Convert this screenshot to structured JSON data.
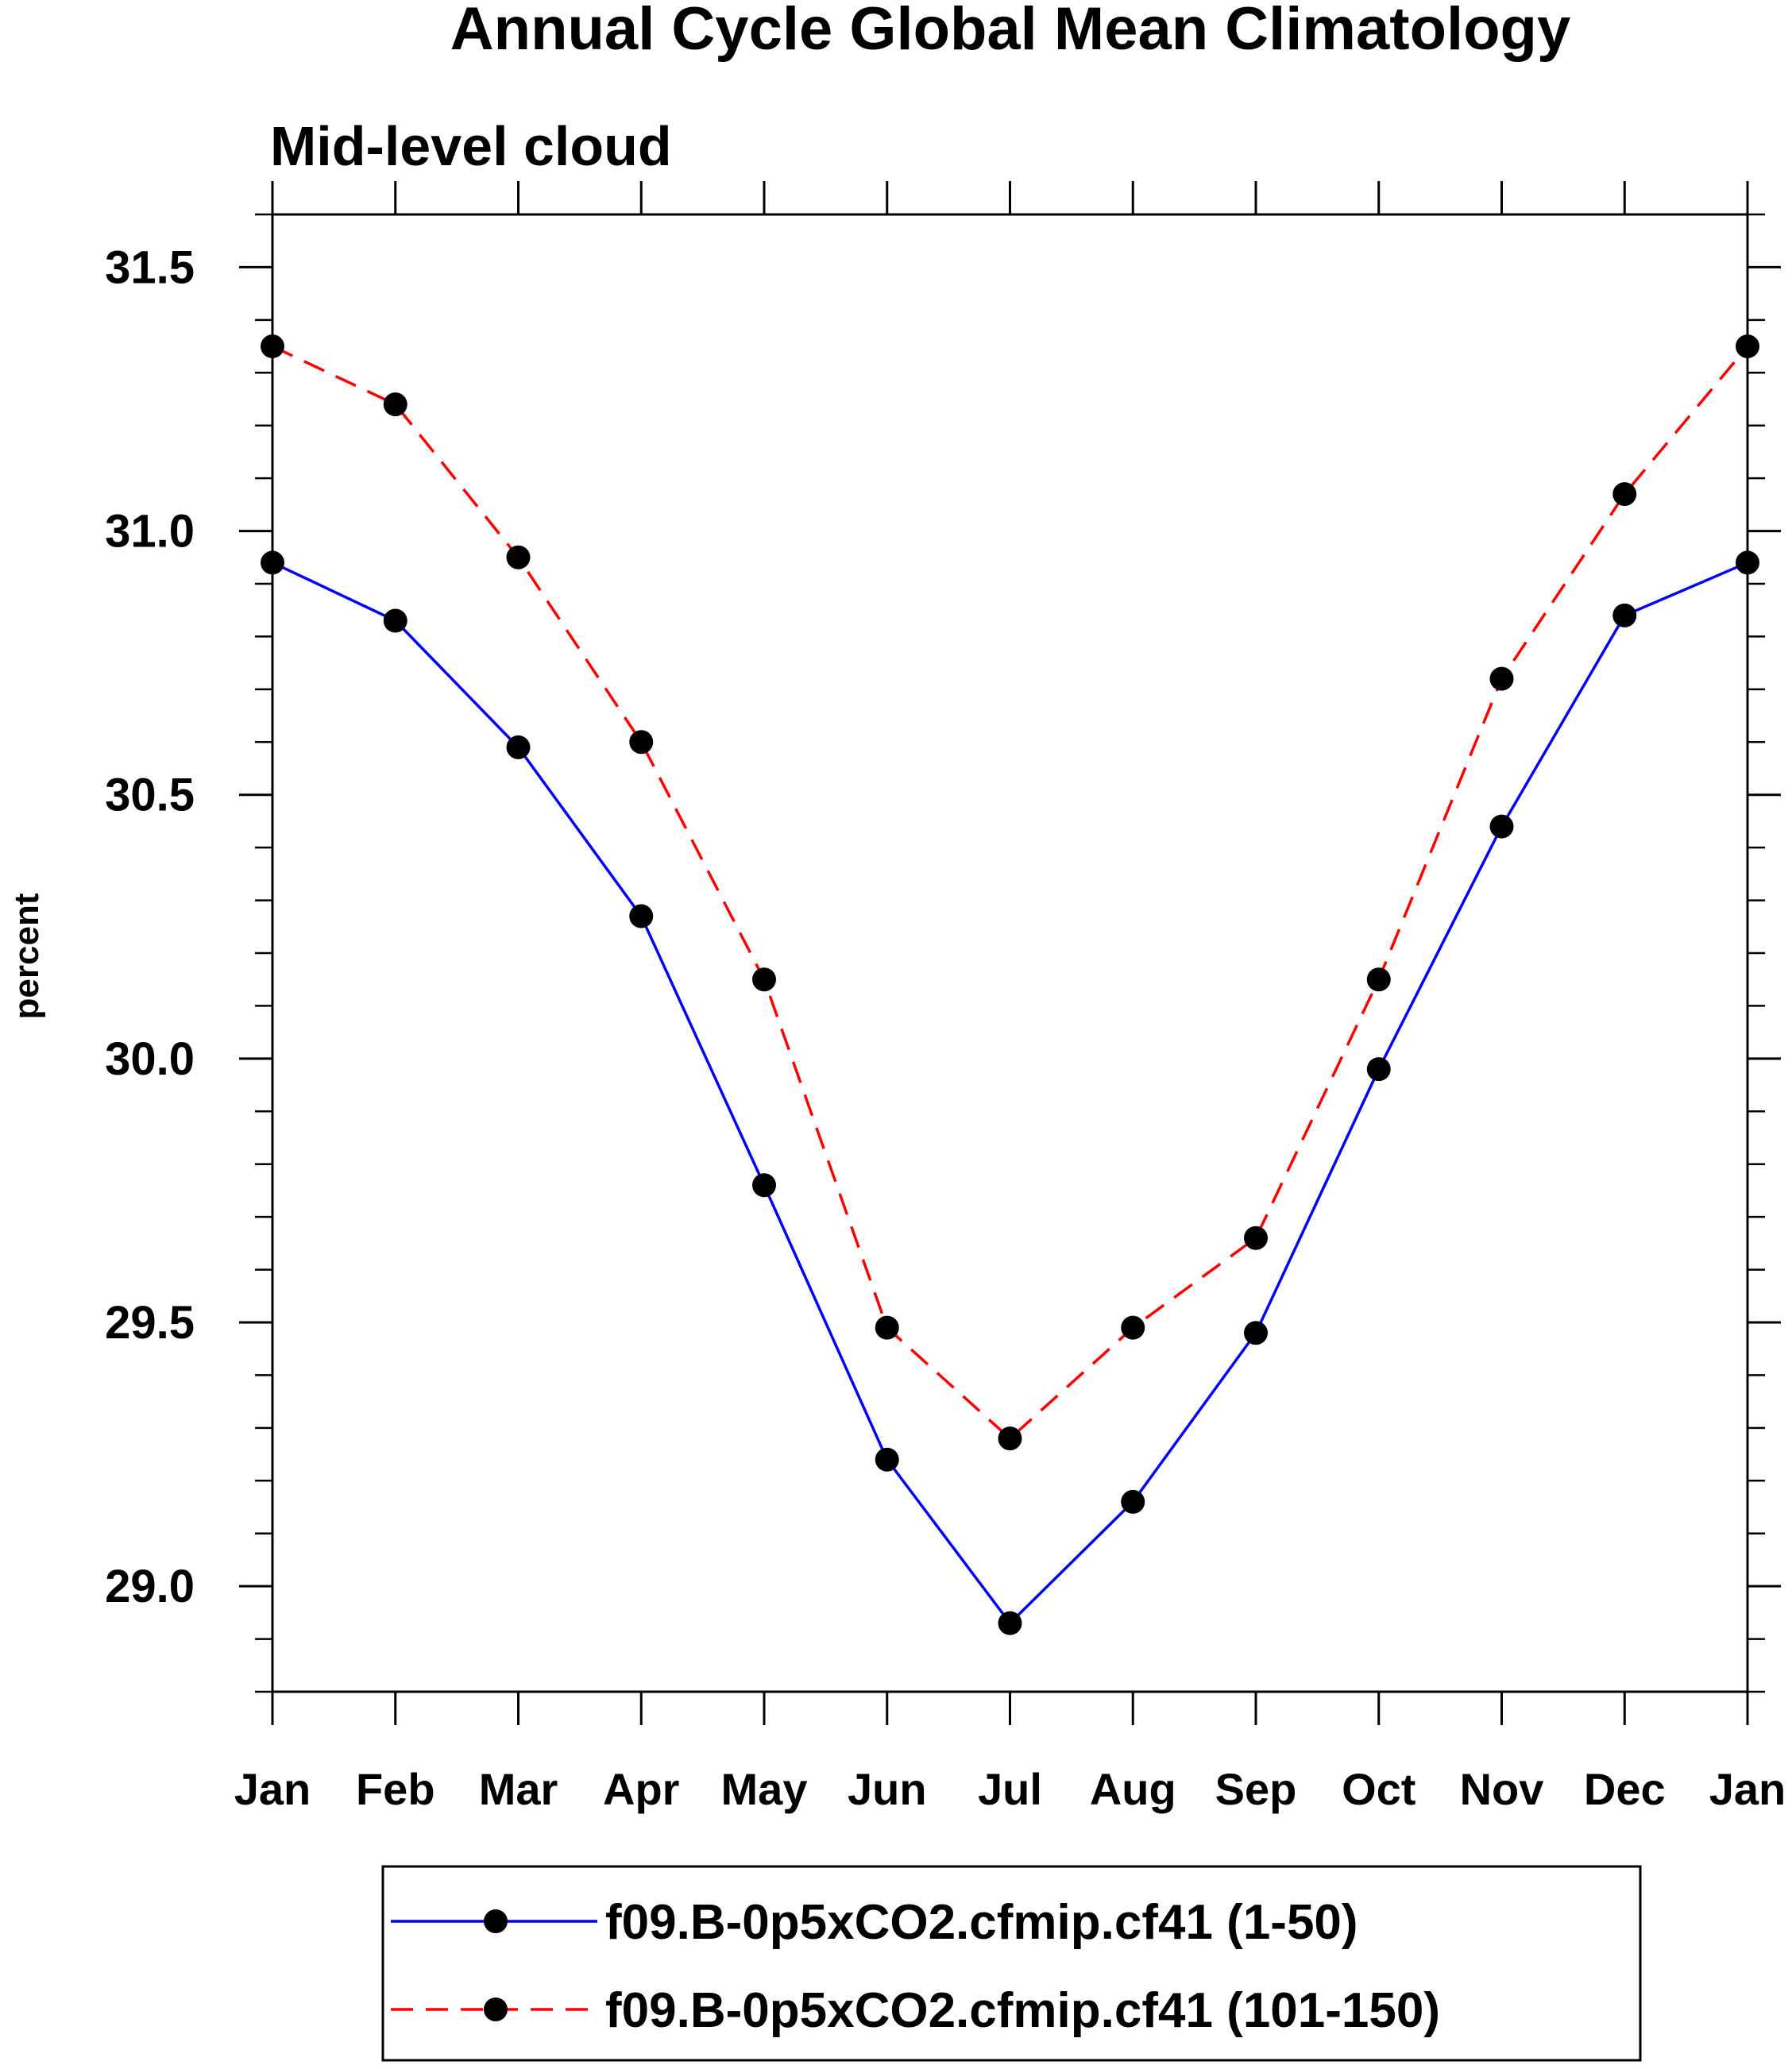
{
  "chart_data": {
    "type": "line",
    "title": "Annual Cycle Global Mean Climatology",
    "subtitle": "Mid-level cloud",
    "xlabel": "",
    "ylabel": "percent",
    "categories": [
      "Jan",
      "Feb",
      "Mar",
      "Apr",
      "May",
      "Jun",
      "Jul",
      "Aug",
      "Sep",
      "Oct",
      "Nov",
      "Dec",
      "Jan"
    ],
    "ylim": [
      28.8,
      31.6
    ],
    "yticks": [
      "29.0",
      "29.5",
      "30.0",
      "30.5",
      "31.0",
      "31.5"
    ],
    "grid": false,
    "legend_position": "bottom",
    "series": [
      {
        "name": "f09.B-0p5xCO2.cfmip.cf41 (1-50)",
        "color": "#0000ff",
        "line_style": "solid",
        "marker": "filled-circle",
        "values": [
          30.94,
          30.83,
          30.59,
          30.27,
          29.76,
          29.24,
          28.93,
          29.16,
          29.48,
          29.98,
          30.44,
          30.84,
          30.94
        ]
      },
      {
        "name": "f09.B-0p5xCO2.cfmip.cf41 (101-150)",
        "color": "#ff0000",
        "line_style": "dashed",
        "marker": "filled-circle",
        "values": [
          31.35,
          31.24,
          30.95,
          30.6,
          30.15,
          29.49,
          29.28,
          29.49,
          29.66,
          30.15,
          30.72,
          31.07,
          31.35
        ]
      }
    ]
  }
}
